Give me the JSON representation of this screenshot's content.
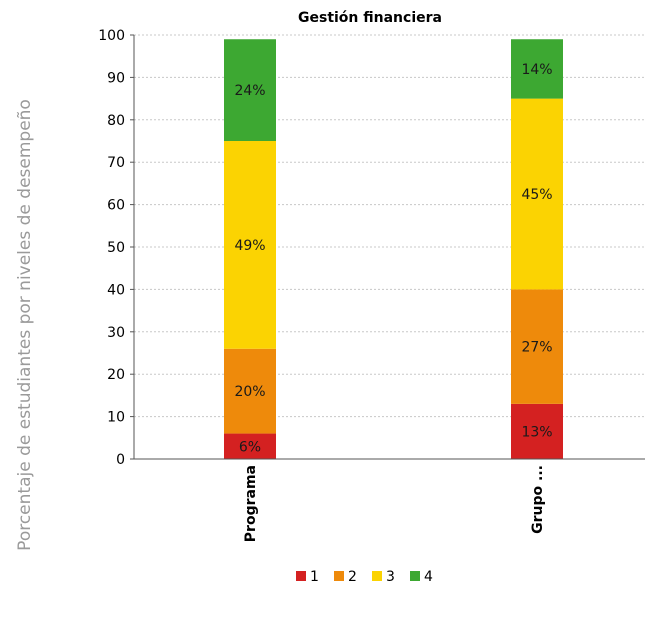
{
  "chart_data": {
    "type": "bar",
    "stacked": true,
    "title": "Gestión financiera",
    "ylabel": "Porcentaje de estudiantes por niveles de desempeño",
    "xlabel": "",
    "ylim": [
      0,
      100
    ],
    "yticks": [
      0,
      10,
      20,
      30,
      40,
      50,
      60,
      70,
      80,
      90,
      100
    ],
    "grid": true,
    "legend_position": "bottom",
    "categories": [
      "Programa",
      "Grupo ..."
    ],
    "series": [
      {
        "name": "1",
        "color": "#d42121",
        "values": [
          6,
          13
        ],
        "labels": [
          "6%",
          "13%"
        ]
      },
      {
        "name": "2",
        "color": "#ee8a0b",
        "values": [
          20,
          27
        ],
        "labels": [
          "20%",
          "27%"
        ]
      },
      {
        "name": "3",
        "color": "#fbd302",
        "values": [
          49,
          45
        ],
        "labels": [
          "49%",
          "45%"
        ]
      },
      {
        "name": "4",
        "color": "#3da832",
        "values": [
          24,
          14
        ],
        "labels": [
          "24%",
          "14%"
        ]
      }
    ]
  }
}
